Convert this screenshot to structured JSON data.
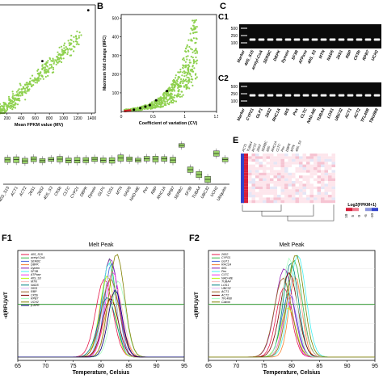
{
  "panels": {
    "B": "B",
    "C": "C",
    "C1": "C1",
    "C2": "C2",
    "E": "E",
    "F1": "F1",
    "F2": "F2"
  },
  "chart_data": [
    {
      "id": "A",
      "type": "scatter",
      "xlabel": "Mean FPKM value (MV)",
      "x_ticks": [
        200,
        400,
        600,
        800,
        1000,
        1200,
        1400
      ],
      "xlim": [
        100,
        1450
      ],
      "ylim": [
        0,
        1
      ],
      "colors": {
        "points": "#8fd14f",
        "highlight": "#000000"
      },
      "highlight_points": [
        {
          "x": 700,
          "y": 0.48
        },
        {
          "x": 1350,
          "y": 0.95
        }
      ]
    },
    {
      "id": "B",
      "type": "scatter",
      "xlabel": "Coefficient of variation (CV)",
      "ylabel": "Maximum fold change (MFC)",
      "x_ticks": [
        "0",
        "0.5",
        "1",
        "1.5"
      ],
      "y_ticks": [
        "100",
        "200",
        "300",
        "400",
        "500"
      ],
      "xlim": [
        0,
        1.5
      ],
      "ylim": [
        0,
        520
      ],
      "colors": {
        "points": "#8fd14f",
        "highlight": "#000000",
        "red": "#dd2222"
      }
    },
    {
      "id": "C1",
      "type": "gel",
      "size_marker_label": "Marker",
      "ladder": [
        "500",
        "250",
        "100"
      ],
      "lanes": [
        "Marker",
        "40S_S15",
        "acetyl-CoA",
        "SERBC",
        "DBPK",
        "Dynein",
        "SF3B",
        "ATPase",
        "40S_S3",
        "MTN",
        "NAD5",
        "26S1",
        "RBP",
        "CK5b",
        "RPB7",
        "UCH2"
      ]
    },
    {
      "id": "C2",
      "type": "gel",
      "size_marker_label": "Marker",
      "ladder": [
        "500",
        "250",
        "100"
      ],
      "lanes": [
        "Marker",
        "CYP21",
        "GLP1",
        "26S2",
        "RHC1A",
        "60S",
        "Pex",
        "CLTC",
        "NAD-ME",
        "TUBA4",
        "LOS1",
        "UBC32",
        "ACT1",
        "ACT2",
        "TFL40B",
        "TBU/IB8"
      ]
    },
    {
      "id": "D",
      "type": "box",
      "categories": [
        "40S_S15",
        "ACT1",
        "ACT2",
        "26S1",
        "26S2",
        "40S_S3",
        "CK5b",
        "CLTC",
        "CYP21",
        "DBPK",
        "Dynein",
        "GLP1",
        "LOS1",
        "MTN",
        "NAD5",
        "NAD-ME",
        "Pex",
        "RBP",
        "RHC1A",
        "RPB7",
        "SERBC",
        "SF3B",
        "TUBA4",
        "UBC32",
        "UCH2",
        "Ubiquitin"
      ]
    },
    {
      "id": "E",
      "type": "heatmap",
      "legend_title": "Log2(FPKM+1)",
      "legend_ticks": [
        "10",
        "5",
        "0",
        "-5",
        "-10"
      ],
      "colors": {
        "high": "#d61f3a",
        "mid": "#ffffff",
        "low": "#3344cc"
      }
    },
    {
      "id": "F1",
      "type": "line",
      "title": "Melt Peak",
      "xlabel": "Temperature, Celsius",
      "ylabel": "-d(RFU)/dT",
      "x_ticks": [
        "65",
        "70",
        "75",
        "80",
        "85",
        "90",
        "95"
      ],
      "xlim": [
        65,
        95
      ],
      "threshold_color": "#339933",
      "legend": [
        "40S_S15",
        "acetyl-CoA",
        "SERBC",
        "DBPK",
        "Dynein",
        "SF3B",
        "ATPase",
        "40S_S3",
        "MTN",
        "NAD5",
        "26S1",
        "RBP",
        "CK5b",
        "RPB7",
        "UCH2",
        "β-APR"
      ]
    },
    {
      "id": "F2",
      "type": "line",
      "title": "Melt Peak",
      "xlabel": "Temperature, Celsius",
      "ylabel": "-d(RFU)/dT",
      "x_ticks": [
        "65",
        "70",
        "75",
        "80",
        "85",
        "90",
        "95"
      ],
      "xlim": [
        65,
        95
      ],
      "threshold_color": "#339933",
      "legend": [
        "26S2",
        "CYP21",
        "GLP1",
        "RHC1A",
        "60S",
        "Pex",
        "CLTC",
        "NAD-ME",
        "TUBA4",
        "LOS1",
        "UBC32",
        "ACT1",
        "ACT2",
        "TFL40B",
        "Calmin"
      ]
    }
  ]
}
